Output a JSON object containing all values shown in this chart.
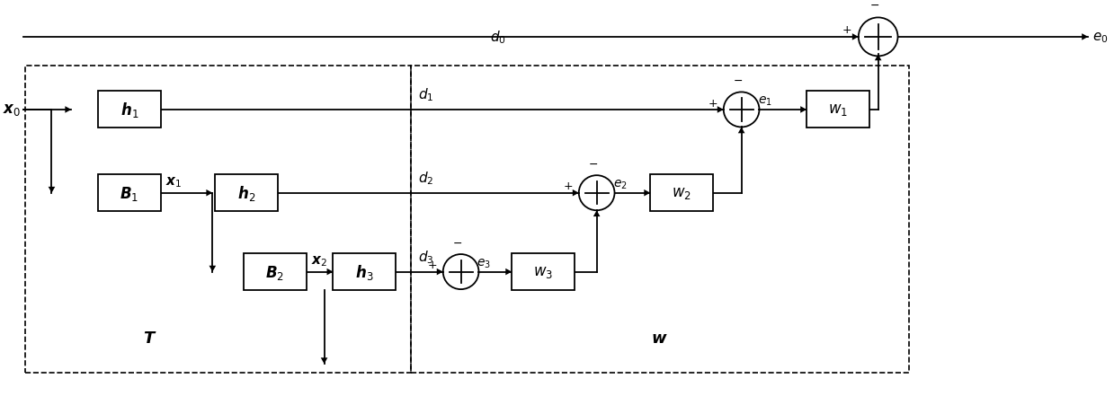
{
  "fig_width": 12.39,
  "fig_height": 4.52,
  "dpi": 100,
  "bg_color": "#ffffff"
}
